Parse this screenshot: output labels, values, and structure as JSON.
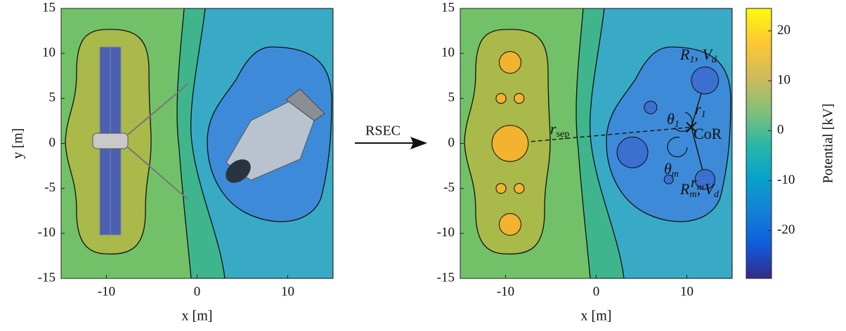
{
  "chart_data": [
    {
      "type": "contour",
      "xlabel": "x [m]",
      "ylabel": "y [m]",
      "xlim": [
        -15,
        15
      ],
      "ylim": [
        -15,
        15
      ],
      "xticks": [
        -10,
        0,
        10
      ],
      "yticks": [
        -15,
        -10,
        -5,
        0,
        5,
        10,
        15
      ]
    },
    {
      "type": "contour",
      "xlabel": "x [m]",
      "xlim": [
        -15,
        15
      ],
      "ylim": [
        -15,
        15
      ],
      "xticks": [
        -10,
        0,
        10
      ],
      "yticks": [
        -15,
        -10,
        -5,
        0,
        5,
        10,
        15
      ],
      "arrow_label": "RSEC",
      "charges": [
        {
          "color": "#f2b32f",
          "x": [
            -9.5,
            -10.5,
            -8.5,
            -9.5,
            -10.5,
            -8.5,
            -9.5
          ],
          "y": [
            9,
            5,
            5,
            0,
            -5,
            -5,
            -9
          ],
          "sizes": [
            1.2,
            0.55,
            0.55,
            2,
            0.55,
            0.55,
            1.2
          ]
        },
        {
          "color": "#3b6fd0",
          "x": [
            12,
            6,
            4,
            8,
            12
          ],
          "y": [
            7,
            4,
            -1,
            -4,
            -4
          ],
          "sizes": [
            1.5,
            0.7,
            1.7,
            0.5,
            1.1
          ]
        }
      ],
      "center": {
        "x": 10.5,
        "y": 1.8
      },
      "annotations": [
        [
          "R",
          "1",
          ", V",
          "d"
        ],
        [
          "θ",
          "1"
        ],
        [
          "r",
          "1"
        ],
        [
          "CoR"
        ],
        [
          "θ",
          "m"
        ],
        [
          "r",
          "m"
        ],
        [
          "R",
          "m",
          ", V",
          "d"
        ],
        [
          "r",
          "sep"
        ]
      ]
    },
    {
      "type": "colorbar",
      "label": "Potential [kV]",
      "lim": [
        -29.6,
        24.5
      ],
      "ticks": [
        -20,
        -10,
        0,
        10,
        20
      ],
      "colormap": [
        "#352a87",
        "#0f5cdd",
        "#1481d6",
        "#06a4ca",
        "#2eb7a4",
        "#87bf77",
        "#d1bb59",
        "#fec832",
        "#f9fb0e"
      ]
    }
  ]
}
